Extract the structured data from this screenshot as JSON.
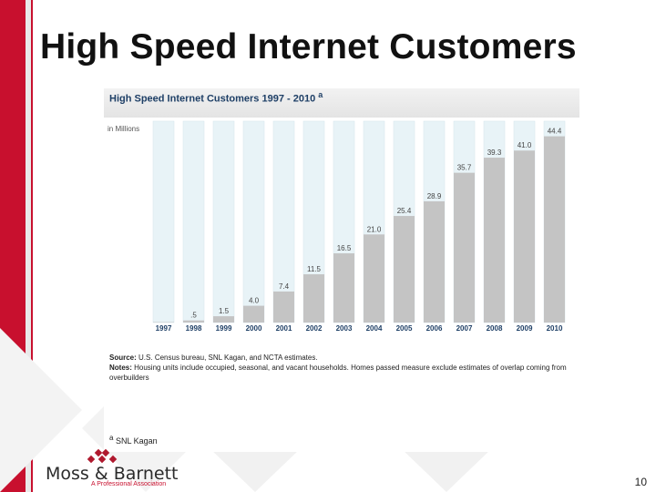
{
  "slide": {
    "title": "High Speed Internet Customers",
    "page_number": "10"
  },
  "chart_data": {
    "type": "bar",
    "title": "High Speed Internet Customers   1997  -  2010",
    "title_superscript": "a",
    "ylabel": "in Millions",
    "categories": [
      "1997",
      "1998",
      "1999",
      "2000",
      "2001",
      "2002",
      "2003",
      "2004",
      "2005",
      "2006",
      "2007",
      "2008",
      "2009",
      "2010"
    ],
    "values": [
      0.1,
      0.5,
      1.5,
      4.0,
      7.4,
      11.5,
      16.5,
      21.0,
      25.4,
      28.9,
      35.7,
      39.3,
      41.0,
      44.4
    ],
    "value_labels": [
      "",
      ".5",
      "1.5",
      "4.0",
      "7.4",
      "11.5",
      "16.5",
      "21.0",
      "25.4",
      "28.9",
      "35.7",
      "39.3",
      "41.0",
      "44.4"
    ],
    "ylim": [
      0,
      48
    ],
    "colors": {
      "filled": "#c4c4c4",
      "track": "#e8f3f7"
    }
  },
  "footnotes": {
    "source_label": "Source:",
    "source_text": "U.S. Census bureau, SNL Kagan, and NCTA estimates.",
    "notes_label": "Notes:",
    "notes_text": "Housing units include occupied, seasonal, and vacant households. Homes passed measure exclude estimates of overlap coming from overbuilders",
    "reference_marker": "a",
    "reference_text": "SNL Kagan"
  },
  "logo": {
    "name": "Moss & Barnett",
    "tagline": "A Professional Association"
  }
}
